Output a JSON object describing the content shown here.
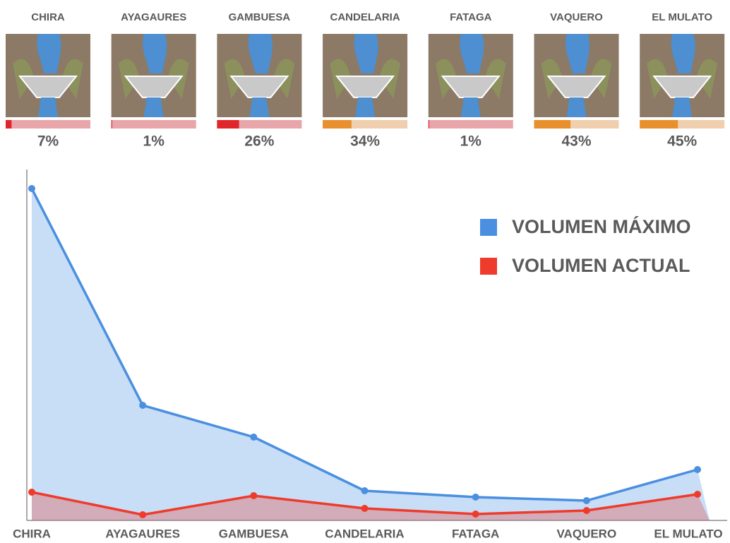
{
  "chart_data": [
    {
      "type": "gauge",
      "categories": [
        "CHIRA",
        "AYAGAURES",
        "GAMBUESA",
        "CANDELARIA",
        "FATAGA",
        "VAQUERO",
        "EL MULATO"
      ],
      "values": [
        7,
        1,
        26,
        34,
        1,
        43,
        45
      ],
      "value_labels": [
        "7%",
        "1%",
        "26%",
        "34%",
        "1%",
        "43%",
        "45%"
      ],
      "ylim": [
        0,
        100
      ],
      "colors": [
        "#e0262b",
        "#e0262b",
        "#e0262b",
        "#e8902e",
        "#e0262b",
        "#e8902e",
        "#e8902e"
      ],
      "track_colors": [
        "#e8a6aa",
        "#e8a6aa",
        "#e8a6aa",
        "#f0cfae",
        "#e8a6aa",
        "#f0cfae",
        "#f0cfae"
      ]
    },
    {
      "type": "line",
      "categories": [
        "CHIRA",
        "AYAGAURES",
        "GAMBUESA",
        "CANDELARIA",
        "FATAGA",
        "VAQUERO",
        "EL MULATO"
      ],
      "series": [
        {
          "name": "VOLUMEN MÁXIMO",
          "color": "#4a8fe0",
          "values": [
            470,
            163,
            118,
            42,
            33,
            28,
            72
          ]
        },
        {
          "name": "VOLUMEN ACTUAL",
          "color": "#ee3b2b",
          "values": [
            40,
            8,
            35,
            17,
            9,
            14,
            37
          ]
        }
      ],
      "ylim": [
        0,
        500
      ],
      "legend": "upper right"
    }
  ]
}
